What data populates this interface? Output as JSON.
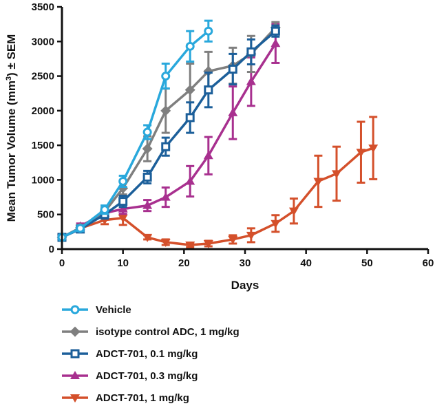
{
  "chart_data": {
    "type": "line",
    "xlabel": "Days",
    "ylabel_main": "Mean Tumor Volume (mm",
    "ylabel_sup": "3",
    "ylabel_tail": ") ± SEM",
    "xlim": [
      0,
      60
    ],
    "ylim": [
      0,
      3500
    ],
    "x_ticks": [
      0,
      10,
      20,
      30,
      40,
      50,
      60
    ],
    "y_ticks": [
      0,
      500,
      1000,
      1500,
      2000,
      2500,
      3000,
      3500
    ],
    "grid": false,
    "legend_position": "below",
    "series": [
      {
        "name": "Vehicle",
        "color": "#29a8dc",
        "marker": "open-circle",
        "x": [
          0,
          3,
          7,
          10,
          14,
          17,
          21,
          24
        ],
        "y": [
          170,
          300,
          570,
          980,
          1690,
          2500,
          2930,
          3150
        ],
        "err": [
          30,
          40,
          60,
          80,
          100,
          180,
          220,
          150
        ]
      },
      {
        "name": "isotype control ADC, 1 mg/kg",
        "color": "#7f7f7f",
        "marker": "diamond",
        "x": [
          0,
          3,
          7,
          10,
          14,
          17,
          21,
          24,
          28,
          31,
          35
        ],
        "y": [
          170,
          310,
          540,
          880,
          1450,
          2000,
          2300,
          2570,
          2650,
          2820,
          3200
        ],
        "err": [
          30,
          40,
          60,
          90,
          180,
          320,
          380,
          280,
          260,
          260,
          80
        ]
      },
      {
        "name": "ADCT-701, 0.1 mg/kg",
        "color": "#1c5f9a",
        "marker": "open-square",
        "x": [
          0,
          3,
          7,
          10,
          14,
          17,
          21,
          24,
          28,
          31,
          35
        ],
        "y": [
          170,
          290,
          500,
          690,
          1040,
          1480,
          1900,
          2300,
          2600,
          2850,
          3150
        ],
        "err": [
          30,
          40,
          60,
          80,
          90,
          130,
          220,
          250,
          220,
          180,
          80
        ]
      },
      {
        "name": "ADCT-701, 0.3 mg/kg",
        "color": "#a8308f",
        "marker": "triangle-up",
        "x": [
          3,
          7,
          10,
          14,
          17,
          21,
          24,
          28,
          31,
          35
        ],
        "y": [
          330,
          520,
          580,
          630,
          750,
          980,
          1350,
          1970,
          2420,
          2970
        ],
        "err": [
          40,
          60,
          70,
          80,
          140,
          220,
          270,
          380,
          350,
          280
        ]
      },
      {
        "name": "ADCT-701, 1 mg/kg",
        "color": "#d4502b",
        "marker": "triangle-down",
        "x": [
          0,
          3,
          7,
          10,
          14,
          17,
          21,
          24,
          28,
          31,
          35,
          38,
          42,
          45,
          49,
          51
        ],
        "y": [
          170,
          300,
          420,
          450,
          170,
          100,
          60,
          80,
          140,
          200,
          370,
          550,
          980,
          1090,
          1400,
          1460
        ],
        "err": [
          30,
          40,
          60,
          100,
          30,
          40,
          30,
          40,
          60,
          100,
          120,
          180,
          370,
          390,
          440,
          450
        ]
      }
    ]
  }
}
